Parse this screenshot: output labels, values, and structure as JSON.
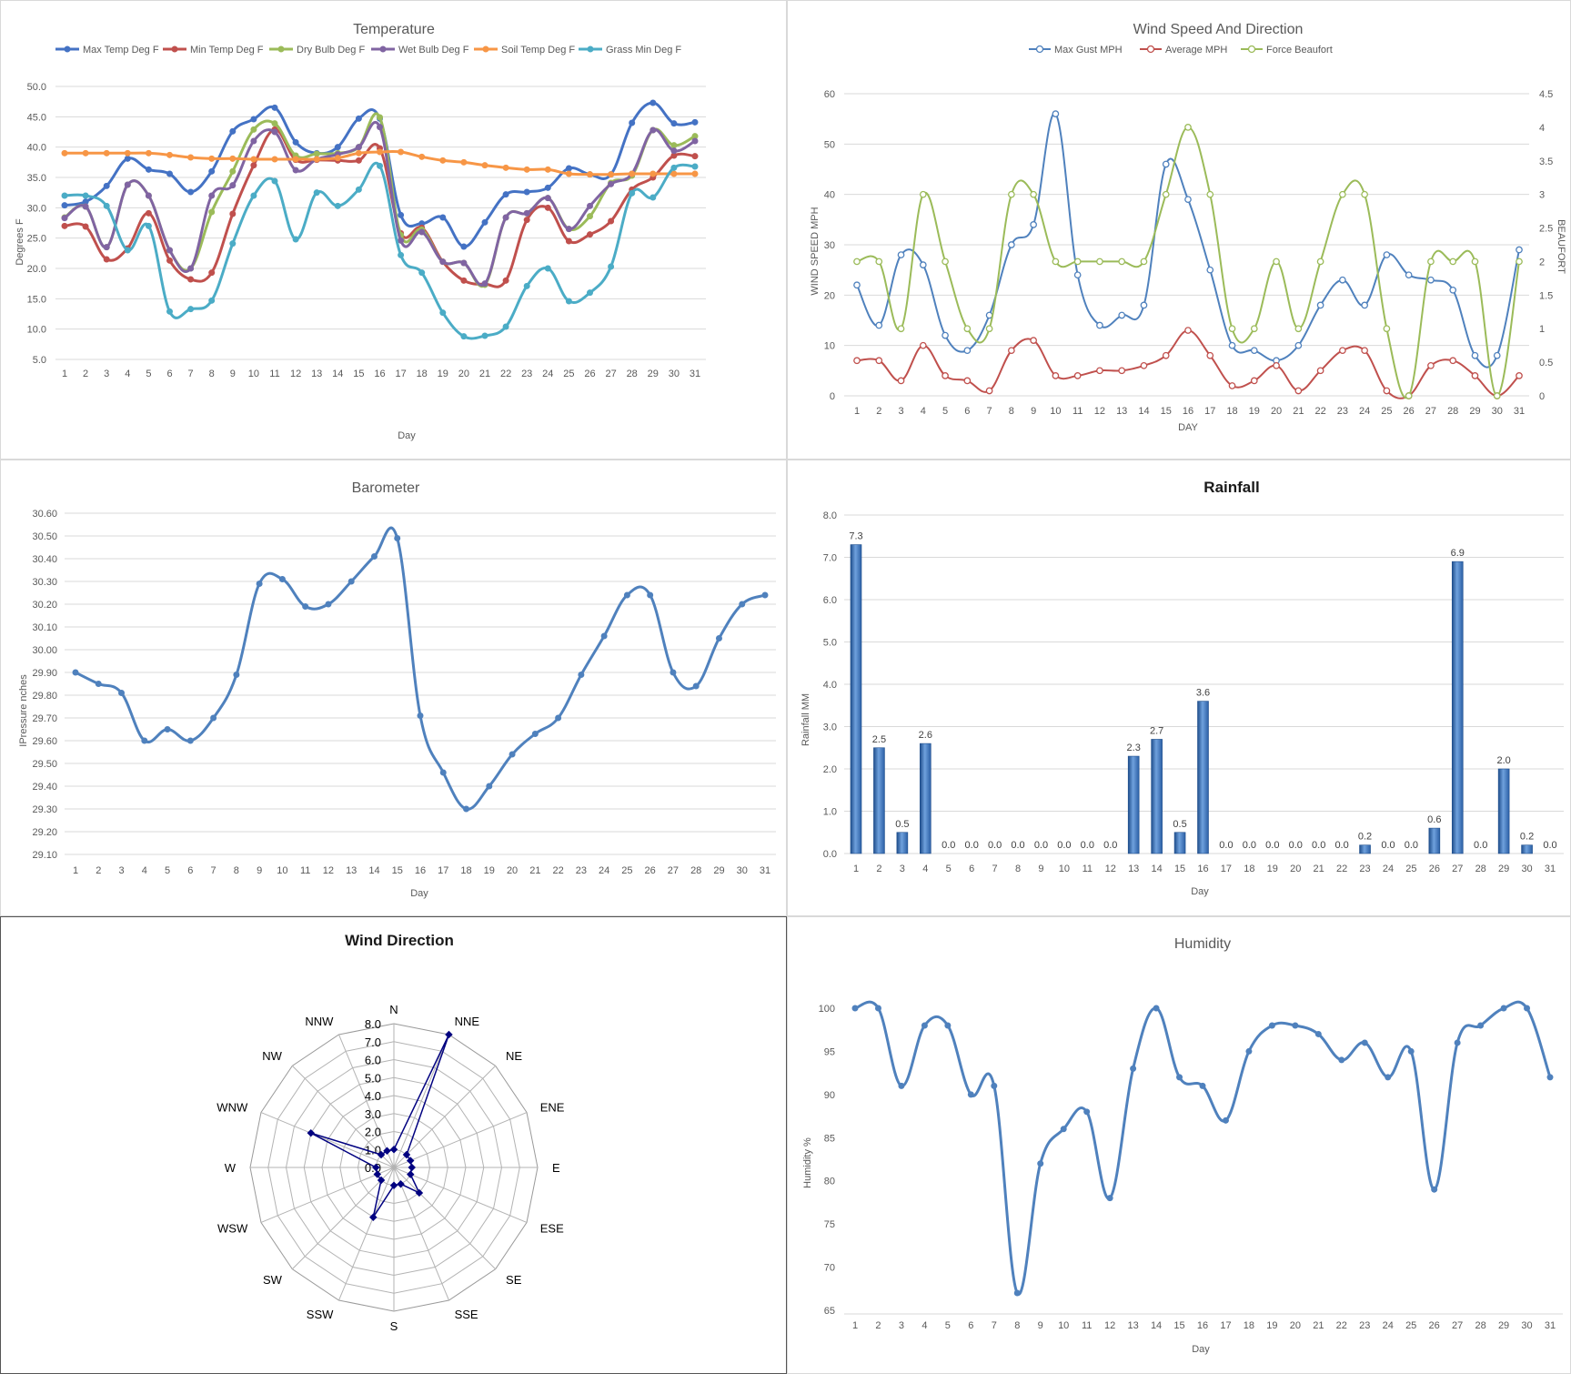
{
  "days": [
    "1",
    "2",
    "3",
    "4",
    "5",
    "6",
    "7",
    "8",
    "9",
    "10",
    "11",
    "12",
    "13",
    "14",
    "15",
    "16",
    "17",
    "18",
    "19",
    "20",
    "21",
    "22",
    "23",
    "24",
    "25",
    "26",
    "27",
    "28",
    "29",
    "30",
    "31"
  ],
  "temperature": {
    "title": "Temperature",
    "xlabel": "Day",
    "ylabel": "Degrees F",
    "yticks": [
      "50.0",
      "45.0",
      "40.0",
      "35.0",
      "30.0",
      "25.0",
      "20.0",
      "15.0",
      "10.0",
      "5.0"
    ],
    "legend": [
      "Max Temp Deg F",
      "Min Temp Deg F",
      "Dry Bulb Deg F",
      "Wet Bulb Deg F",
      "Soil Temp Deg F",
      "Grass Min Deg F"
    ]
  },
  "wind": {
    "title": "Wind Speed And Direction",
    "xlabel": "DAY",
    "ylabel": "WIND SPEED MPH",
    "y2label": "BEAUFORT",
    "yticks": [
      "60",
      "50",
      "40",
      "30",
      "20",
      "10",
      "0"
    ],
    "y2ticks": [
      "4.5",
      "4",
      "3.5",
      "3",
      "2.5",
      "2",
      "1.5",
      "1",
      "0.5",
      "0"
    ],
    "legend": [
      "Max Gust MPH",
      "Average MPH",
      "Force Beaufort"
    ]
  },
  "barometer": {
    "title": "Barometer",
    "xlabel": "Day",
    "ylabel": "IPressure nches",
    "yticks": [
      "30.60",
      "30.50",
      "30.40",
      "30.30",
      "30.20",
      "30.10",
      "30.00",
      "29.90",
      "29.80",
      "29.70",
      "29.60",
      "29.50",
      "29.40",
      "29.30",
      "29.20",
      "29.10"
    ]
  },
  "rainfall": {
    "title": "Rainfall",
    "xlabel": "Day",
    "ylabel": "Rainfall MM",
    "yticks": [
      "8.0",
      "7.0",
      "6.0",
      "5.0",
      "4.0",
      "3.0",
      "2.0",
      "1.0",
      "0.0"
    ],
    "value_labels": [
      "7.3",
      "2.5",
      "0.5",
      "2.6",
      "0.0",
      "0.0",
      "0.0",
      "0.0",
      "0.0",
      "0.0",
      "0.0",
      "0.0",
      "2.3",
      "2.7",
      "0.5",
      "3.6",
      "0.0",
      "0.0",
      "0.0",
      "0.0",
      "0.0",
      "0.0",
      "0.2",
      "0.0",
      "0.0",
      "0.6",
      "6.9",
      "0.0",
      "2.0",
      "0.2",
      "0.0"
    ]
  },
  "wind_direction": {
    "title": "Wind Direction",
    "directions": [
      "N",
      "NNE",
      "NE",
      "ENE",
      "E",
      "ESE",
      "SE",
      "SSE",
      "S",
      "SSW",
      "SW",
      "WSW",
      "W",
      "WNW",
      "NW",
      "NNW"
    ],
    "rticks": [
      "0.0",
      "1.0",
      "2.0",
      "3.0",
      "4.0",
      "5.0",
      "6.0",
      "7.0",
      "8.0"
    ]
  },
  "humidity": {
    "title": "Humidity",
    "xlabel": "Day",
    "ylabel": "Humidity %",
    "yticks": [
      "100",
      "95",
      "90",
      "85",
      "80",
      "75",
      "70",
      "65"
    ]
  },
  "colors": {
    "max_temp": "#4472c4",
    "min_temp": "#c0504d",
    "dry_bulb": "#9bbb59",
    "wet_bulb": "#8064a2",
    "soil_temp": "#f79646",
    "grass_min": "#4bacc6",
    "max_gust": "#4f81bd",
    "average": "#c0504d",
    "beaufort": "#9bbb59",
    "barometer": "#4f81bd",
    "rain_bar": "#4f81bd",
    "rain_bar_dark": "#1f4e8c",
    "radar_line": "#000080",
    "humidity": "#4f81bd"
  },
  "chart_data": [
    {
      "type": "line",
      "title": "Temperature",
      "xlabel": "Day",
      "ylabel": "Degrees F",
      "x": [
        1,
        2,
        3,
        4,
        5,
        6,
        7,
        8,
        9,
        10,
        11,
        12,
        13,
        14,
        15,
        16,
        17,
        18,
        19,
        20,
        21,
        22,
        23,
        24,
        25,
        26,
        27,
        28,
        29,
        30,
        31
      ],
      "ylim": [
        5,
        50
      ],
      "grid": true,
      "legend": "top",
      "series": [
        {
          "name": "Max Temp Deg F",
          "values": [
            30.4,
            31,
            33.6,
            38.1,
            36.3,
            35.6,
            32.6,
            36,
            42.6,
            44.6,
            46.5,
            40.8,
            39,
            40,
            44.7,
            44.7,
            28.8,
            27.4,
            28.4,
            23.6,
            27.6,
            32.2,
            32.6,
            33.3,
            36.5,
            35.5,
            35.5,
            44,
            47.3,
            43.9,
            44.1
          ]
        },
        {
          "name": "Min Temp Deg F",
          "values": [
            27,
            26.9,
            21.5,
            23.3,
            29.1,
            21.3,
            18.2,
            19.3,
            29,
            37,
            42.9,
            37.9,
            37.9,
            37.8,
            37.8,
            39.8,
            25.8,
            26.7,
            21.1,
            18,
            17.4,
            18,
            28,
            30,
            24.5,
            25.6,
            27.8,
            33,
            35,
            38.6,
            38.5
          ]
        },
        {
          "name": "Dry Bulb Deg F",
          "values": [
            28.4,
            30.2,
            23.5,
            33.8,
            32,
            23,
            20,
            29.3,
            36,
            42.9,
            43.9,
            38.6,
            38.9,
            39,
            40,
            44.9,
            25.5,
            26.4,
            21.1,
            20.9,
            17.3,
            28.4,
            29.1,
            31.6,
            26.5,
            28.6,
            34.1,
            35.3,
            42.8,
            40.3,
            41.8
          ]
        },
        {
          "name": "Wet Bulb Deg F",
          "values": [
            28.3,
            30.2,
            23.5,
            33.8,
            32,
            23,
            20,
            32,
            33.7,
            41,
            42.5,
            36.2,
            38,
            38.8,
            40,
            43.3,
            24.6,
            26,
            21.1,
            20.9,
            17.5,
            28.4,
            29.1,
            31.6,
            26.5,
            30.3,
            33.9,
            35.6,
            42.8,
            39.4,
            41
          ]
        },
        {
          "name": "Soil Temp Deg F",
          "values": [
            39,
            39,
            39,
            39,
            39,
            38.7,
            38.3,
            38.1,
            38.1,
            38,
            38,
            38,
            38,
            38.2,
            39,
            39.2,
            39.2,
            38.4,
            37.8,
            37.5,
            37,
            36.6,
            36.3,
            36.3,
            35.6,
            35.5,
            35.5,
            35.6,
            35.6,
            35.6,
            35.6
          ]
        },
        {
          "name": "Grass Min Deg F",
          "values": [
            32,
            32,
            30.3,
            23,
            27,
            12.9,
            13.3,
            14.7,
            24.1,
            32,
            34.4,
            24.8,
            32.5,
            30.3,
            33,
            36.9,
            22.2,
            19.3,
            12.7,
            8.8,
            8.9,
            10.4,
            17.1,
            20,
            14.6,
            16,
            20.3,
            32.4,
            31.7,
            36.6,
            36.8
          ]
        }
      ]
    },
    {
      "type": "line",
      "title": "Wind Speed And Direction",
      "xlabel": "DAY",
      "ylabel": "WIND SPEED MPH",
      "y2label": "BEAUFORT",
      "x": [
        1,
        2,
        3,
        4,
        5,
        6,
        7,
        8,
        9,
        10,
        11,
        12,
        13,
        14,
        15,
        16,
        17,
        18,
        19,
        20,
        21,
        22,
        23,
        24,
        25,
        26,
        27,
        28,
        29,
        30,
        31
      ],
      "ylim": [
        0,
        60
      ],
      "y2lim": [
        0,
        4.5
      ],
      "grid": true,
      "legend": "top",
      "series": [
        {
          "name": "Max Gust MPH",
          "axis": "left",
          "values": [
            22,
            14,
            28,
            26,
            12,
            9,
            16,
            30,
            34,
            56,
            24,
            14,
            16,
            18,
            46,
            39,
            25,
            10,
            9,
            7,
            10,
            18,
            23,
            18,
            28,
            24,
            23,
            21,
            8,
            8,
            29
          ]
        },
        {
          "name": "Average MPH",
          "axis": "left",
          "values": [
            7,
            7,
            3,
            10,
            4,
            3,
            1,
            9,
            11,
            4,
            4,
            5,
            5,
            6,
            8,
            13,
            8,
            2,
            3,
            6,
            1,
            5,
            9,
            9,
            1,
            0,
            6,
            7,
            4,
            0,
            4
          ]
        },
        {
          "name": "Force Beaufort",
          "axis": "right",
          "values": [
            2,
            2,
            1,
            3,
            2,
            1,
            1,
            3,
            3,
            2,
            2,
            2,
            2,
            2,
            3,
            4,
            3,
            1,
            1,
            2,
            1,
            2,
            3,
            3,
            1,
            0,
            2,
            2,
            2,
            0,
            2
          ]
        }
      ]
    },
    {
      "type": "line",
      "title": "Barometer",
      "xlabel": "Day",
      "ylabel": "IPressure nches",
      "x": [
        1,
        2,
        3,
        4,
        5,
        6,
        7,
        8,
        9,
        10,
        11,
        12,
        13,
        14,
        15,
        16,
        17,
        18,
        19,
        20,
        21,
        22,
        23,
        24,
        25,
        26,
        27,
        28,
        29,
        30,
        31
      ],
      "ylim": [
        29.1,
        30.6
      ],
      "grid": true,
      "series": [
        {
          "name": "",
          "values": [
            29.9,
            29.85,
            29.81,
            29.6,
            29.65,
            29.6,
            29.7,
            29.89,
            30.29,
            30.31,
            30.19,
            30.2,
            30.3,
            30.41,
            30.49,
            29.71,
            29.46,
            29.3,
            29.4,
            29.54,
            29.63,
            29.7,
            29.89,
            30.06,
            30.24,
            30.24,
            29.9,
            29.84,
            30.05,
            30.2,
            30.24
          ]
        }
      ]
    },
    {
      "type": "bar",
      "title": "Rainfall",
      "xlabel": "Day",
      "ylabel": "Rainfall MM",
      "categories": [
        "1",
        "2",
        "3",
        "4",
        "5",
        "6",
        "7",
        "8",
        "9",
        "10",
        "11",
        "12",
        "13",
        "14",
        "15",
        "16",
        "17",
        "18",
        "19",
        "20",
        "21",
        "22",
        "23",
        "24",
        "25",
        "26",
        "27",
        "28",
        "29",
        "30",
        "31"
      ],
      "ylim": [
        0,
        8
      ],
      "grid": true,
      "values": [
        7.3,
        2.5,
        0.5,
        2.6,
        0,
        0,
        0,
        0,
        0,
        0,
        0,
        0,
        2.3,
        2.7,
        0.5,
        3.6,
        0,
        0,
        0,
        0,
        0,
        0,
        0.2,
        0,
        0,
        0.6,
        6.9,
        0,
        2,
        0.2,
        0
      ]
    },
    {
      "type": "radar",
      "title": "Wind Direction",
      "categories": [
        "N",
        "NNE",
        "NE",
        "ENE",
        "E",
        "ESE",
        "SE",
        "SSE",
        "S",
        "SSW",
        "SW",
        "WSW",
        "W",
        "WNW",
        "NW",
        "NNW"
      ],
      "rlim": [
        0,
        8
      ],
      "values": [
        1,
        8,
        1,
        1,
        1,
        1,
        2,
        1,
        1,
        3,
        1,
        1,
        1,
        5,
        1,
        1
      ]
    },
    {
      "type": "line",
      "title": "Humidity",
      "xlabel": "Day",
      "ylabel": "Humidity %",
      "x": [
        1,
        2,
        3,
        4,
        5,
        6,
        7,
        8,
        9,
        10,
        11,
        12,
        13,
        14,
        15,
        16,
        17,
        18,
        19,
        20,
        21,
        22,
        23,
        24,
        25,
        26,
        27,
        28,
        29,
        30,
        31
      ],
      "ylim": [
        65,
        100
      ],
      "series": [
        {
          "name": "",
          "values": [
            100,
            100,
            91,
            98,
            98,
            90,
            91,
            67,
            82,
            86,
            88,
            78,
            93,
            100,
            92,
            91,
            87,
            95,
            98,
            98,
            97,
            94,
            96,
            92,
            95,
            79,
            96,
            98,
            100,
            100,
            92
          ]
        }
      ]
    }
  ]
}
